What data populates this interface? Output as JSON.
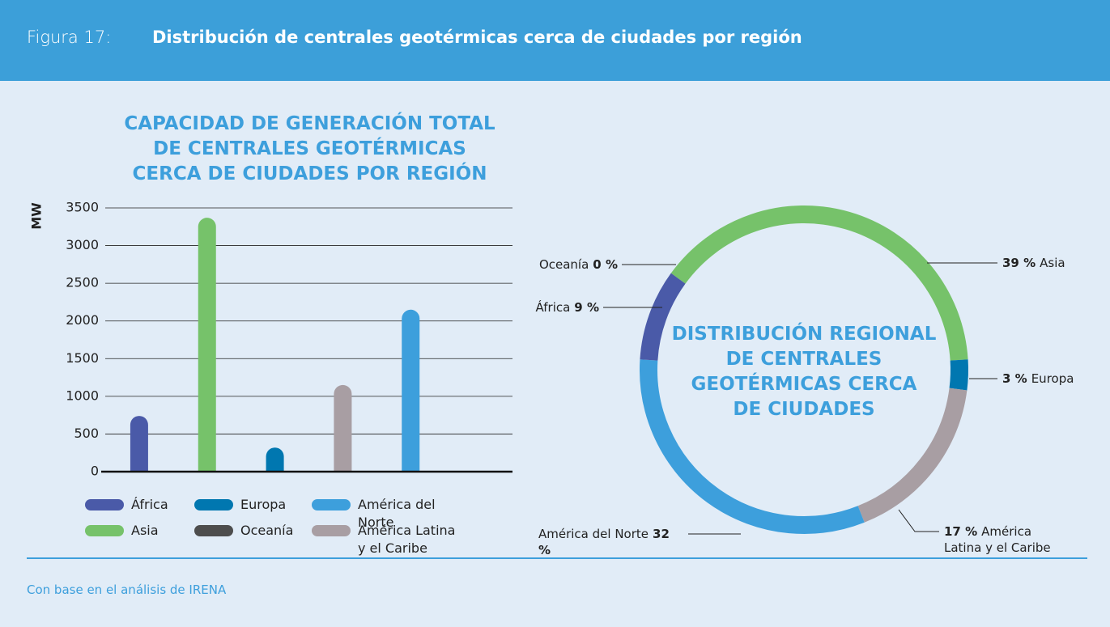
{
  "header": {
    "label": "Figura 17:",
    "title": "Distribución de centrales geotérmicas cerca de ciudades por región"
  },
  "chart_data": [
    {
      "type": "bar",
      "title": "CAPACIDAD DE GENERACIÓN TOTAL\nDE CENTRALES GEOTÉRMICAS\nCERCA DE CIUDADES POR REGIÓN",
      "y_label": "MW",
      "categories": [
        "África",
        "Asia",
        "Europa",
        "América Latina\ny el Caribe",
        "América del Norte",
        "Oceanía"
      ],
      "values": [
        740,
        3370,
        320,
        1150,
        2150,
        0
      ],
      "colors": [
        "#4a5aa8",
        "#76c26a",
        "#0077b0",
        "#a89ea3",
        "#3d9fdc",
        "#4d4d4d"
      ],
      "ylim": [
        0,
        3500
      ],
      "yticks": [
        0,
        500,
        1000,
        1500,
        2000,
        2500,
        3000,
        3500
      ],
      "grid": true
    },
    {
      "type": "pie",
      "title": "DISTRIBUCIÓN REGIONAL\nDE CENTRALES\nGEOTÉRMICAS CERCA\nDE CIUDADES",
      "categories": [
        "Asia",
        "Europa",
        "América\nLatina y el Caribe",
        "América del Norte",
        "África",
        "Oceanía"
      ],
      "values": [
        39,
        3,
        17,
        32,
        9,
        0
      ],
      "value_labels": [
        "39 %",
        "3 %",
        "17 %",
        "32 %",
        "9 %",
        "0 %"
      ],
      "colors": [
        "#76c26a",
        "#0077b0",
        "#a89ea3",
        "#3d9fdc",
        "#4a5aa8",
        "#4d4d4d"
      ]
    }
  ],
  "footer": {
    "source": "Con base en el análisis de IRENA"
  }
}
